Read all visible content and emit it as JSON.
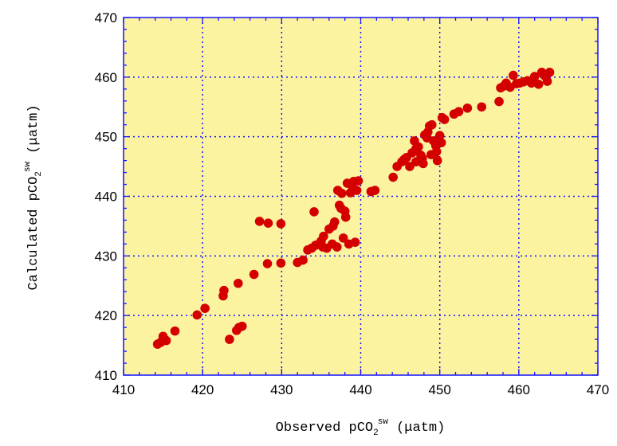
{
  "chart_data": {
    "type": "scatter",
    "title": "",
    "xlabel": {
      "main": "Observed pCO",
      "sub": "2",
      "sup": "sw",
      "unit": " (μatm)"
    },
    "ylabel": {
      "main": "Calculated pCO",
      "sub": "2",
      "sup": "sw",
      "unit": " (μatm)"
    },
    "xlim": [
      410,
      470
    ],
    "ylim": [
      410,
      470
    ],
    "xticks": [
      410,
      420,
      430,
      440,
      450,
      460,
      470
    ],
    "yticks": [
      410,
      420,
      430,
      440,
      450,
      460,
      470
    ],
    "xtick_labels": [
      "410",
      "420",
      "430",
      "440",
      "450",
      "460",
      "470"
    ],
    "ytick_labels": [
      "410",
      "420",
      "430",
      "440",
      "450",
      "460",
      "470"
    ],
    "grid": true,
    "legend": "none",
    "colors": {
      "plot_background": "#FCF3A0",
      "grid": "#1414ff",
      "frame": "#1414ff",
      "marker": "#d40000"
    },
    "series": [
      {
        "x": [
          414.3,
          414.7,
          415.0,
          415.4,
          416.5,
          419.3,
          420.3,
          422.6,
          422.7,
          423.4,
          424.3,
          424.5,
          424.6,
          425.0,
          426.5,
          427.2,
          428.2,
          428.3,
          429.9,
          429.9,
          432.0,
          432.7,
          433.3,
          433.8,
          434.1,
          434.3,
          434.7,
          435.0,
          435.2,
          435.3,
          435.7,
          436.0,
          436.4,
          436.5,
          436.7,
          437.0,
          437.1,
          437.3,
          437.5,
          437.6,
          437.8,
          438.0,
          438.1,
          438.3,
          438.5,
          438.7,
          438.9,
          439.1,
          439.3,
          439.5,
          439.7,
          441.3,
          441.8,
          444.1,
          444.6,
          445.2,
          445.5,
          445.8,
          446.2,
          446.5,
          446.8,
          447.0,
          447.3,
          447.6,
          447.9,
          448.1,
          448.4,
          448.7,
          448.9,
          449.2,
          449.5,
          449.7,
          450.0,
          450.3,
          450.6,
          447.0,
          447.8,
          448.5,
          449.0,
          449.6,
          450.2,
          451.8,
          452.4,
          453.5,
          455.3,
          457.5,
          457.7,
          458.1,
          458.4,
          458.9,
          459.3,
          459.7,
          460.1,
          460.6,
          461.1,
          461.6,
          462.0,
          462.5,
          462.9,
          463.3,
          463.6,
          463.9
        ],
        "y": [
          415.2,
          415.5,
          416.5,
          415.8,
          417.4,
          420.1,
          421.2,
          423.3,
          424.2,
          416.0,
          417.5,
          425.4,
          418.0,
          418.2,
          426.9,
          435.8,
          428.7,
          435.5,
          428.8,
          435.4,
          428.9,
          429.3,
          431.0,
          431.3,
          437.4,
          431.8,
          432.0,
          432.5,
          431.5,
          433.3,
          431.3,
          434.5,
          432.0,
          435.0,
          435.7,
          431.5,
          441.0,
          438.5,
          438.0,
          440.5,
          433.0,
          437.5,
          436.5,
          442.2,
          432.0,
          440.6,
          441.8,
          442.5,
          432.3,
          441.0,
          442.6,
          440.8,
          441.0,
          443.2,
          445.0,
          445.8,
          446.2,
          446.5,
          445.0,
          447.3,
          449.3,
          445.8,
          448.3,
          446.9,
          445.5,
          450.3,
          449.8,
          451.8,
          447.0,
          449.3,
          448.5,
          446.0,
          450.2,
          453.2,
          452.9,
          448.0,
          446.4,
          450.8,
          452.0,
          447.5,
          449.0,
          453.8,
          454.2,
          454.8,
          455.0,
          455.9,
          458.2,
          458.5,
          459.0,
          458.3,
          460.3,
          458.9,
          459.0,
          459.2,
          459.4,
          459.0,
          460.1,
          458.8,
          460.8,
          460.2,
          459.3,
          460.8
        ]
      }
    ]
  }
}
